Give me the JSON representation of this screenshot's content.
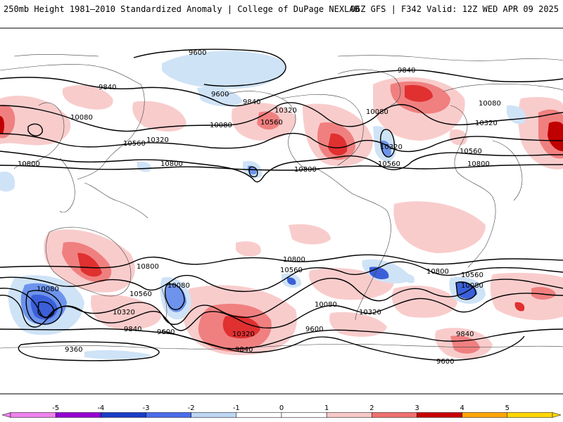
{
  "header": {
    "title_left": "250mb Height 1981–2010 Standardized Anomaly | College of DuPage NEXLAB",
    "title_right": "06Z GFS | F342 Valid: 12Z WED APR 09 2025"
  },
  "contour_labels": [
    "9600",
    "9840",
    "10080",
    "10320",
    "10560",
    "10800",
    "9360"
  ],
  "colorbar": {
    "ticks": [
      "-5",
      "-4",
      "-3",
      "-2",
      "-1",
      "0",
      "1",
      "2",
      "3",
      "4",
      "5"
    ],
    "colors": [
      "#ee82ee",
      "#9400d3",
      "#1a3cc8",
      "#4a6cec",
      "#bcd6f4",
      "#ffffff",
      "#ffffff",
      "#f8c8c8",
      "#f07070",
      "#c80000",
      "#ffa500",
      "#ffd700"
    ]
  },
  "colors": {
    "pos1": "#f9cccc",
    "pos2": "#f08080",
    "pos3": "#e03030",
    "pos4": "#c00000",
    "neg1": "#cfe3f7",
    "neg2": "#6d93ec",
    "neg3": "#3a5fd8",
    "coast": "#404040",
    "contour": "#000000"
  }
}
